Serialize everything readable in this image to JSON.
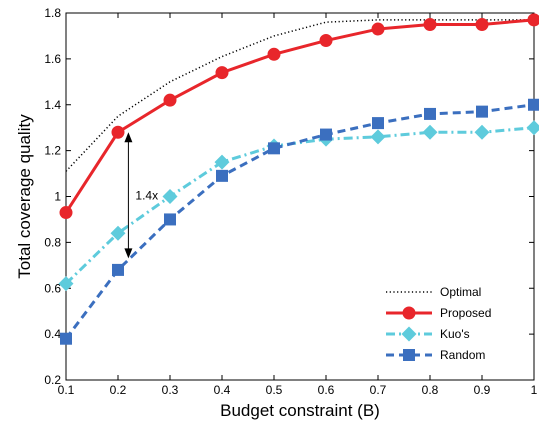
{
  "chart_data": {
    "type": "line",
    "xlabel": "Budget constraint (B)",
    "ylabel": "Total coverage quality",
    "xlim": [
      0.1,
      1
    ],
    "ylim": [
      0.2,
      1.8
    ],
    "xticks": [
      "0.1",
      "0.2",
      "0.3",
      "0.4",
      "0.5",
      "0.6",
      "0.7",
      "0.8",
      "0.9",
      "1"
    ],
    "yticks": [
      "0.2",
      "0.4",
      "0.6",
      "0.8",
      "1",
      "1.2",
      "1.4",
      "1.6",
      "1.8"
    ],
    "grid": false,
    "legend_position": "bottom-right",
    "x": [
      0.1,
      0.2,
      0.3,
      0.4,
      0.5,
      0.6,
      0.7,
      0.8,
      0.9,
      1.0
    ],
    "series": [
      {
        "name": "Optimal",
        "color": "#000000",
        "style": "dotted",
        "marker": "none",
        "values": [
          1.11,
          1.35,
          1.5,
          1.61,
          1.7,
          1.76,
          1.77,
          1.77,
          1.77,
          1.77
        ]
      },
      {
        "name": "Proposed",
        "color": "#e8262b",
        "style": "solid",
        "marker": "circle",
        "values": [
          0.93,
          1.28,
          1.42,
          1.54,
          1.62,
          1.68,
          1.73,
          1.75,
          1.75,
          1.77
        ]
      },
      {
        "name": "Kuo's",
        "color": "#5ecbdc",
        "style": "dashdot",
        "marker": "diamond",
        "values": [
          0.62,
          0.84,
          1.0,
          1.15,
          1.22,
          1.25,
          1.26,
          1.28,
          1.28,
          1.3
        ]
      },
      {
        "name": "Random",
        "color": "#3b6fbf",
        "style": "dashed",
        "marker": "square",
        "values": [
          0.38,
          0.68,
          0.9,
          1.09,
          1.21,
          1.27,
          1.32,
          1.36,
          1.37,
          1.4
        ]
      }
    ],
    "annotation": {
      "text": "1.4x",
      "x": 0.22,
      "y_top": 1.28,
      "y_bottom": 0.73
    }
  }
}
